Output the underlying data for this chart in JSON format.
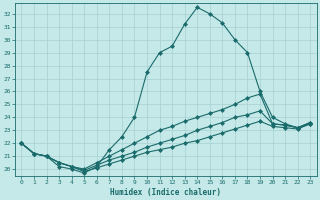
{
  "xlabel": "Humidex (Indice chaleur)",
  "xlim": [
    -0.5,
    23.5
  ],
  "ylim": [
    19.5,
    32.8
  ],
  "yticks": [
    20,
    21,
    22,
    23,
    24,
    25,
    26,
    27,
    28,
    29,
    30,
    31,
    32
  ],
  "xticks": [
    0,
    1,
    2,
    3,
    4,
    5,
    6,
    7,
    8,
    9,
    10,
    11,
    12,
    13,
    14,
    15,
    16,
    17,
    18,
    19,
    20,
    21,
    22,
    23
  ],
  "bg_color": "#c5e8e8",
  "grid_color": "#a8d0d0",
  "line_color": "#1a6b6b",
  "line1_x": [
    0,
    1,
    2,
    3,
    4,
    5,
    6,
    7,
    8,
    9,
    10,
    11,
    12,
    13,
    14,
    15,
    16,
    17,
    18,
    19,
    20,
    21,
    22,
    23
  ],
  "line1_y": [
    22.0,
    21.2,
    21.0,
    20.2,
    20.0,
    19.7,
    20.2,
    21.5,
    22.5,
    24.0,
    27.5,
    29.0,
    29.5,
    31.2,
    32.5,
    32.0,
    31.3,
    30.0,
    29.0,
    26.0,
    24.0,
    23.5,
    23.2,
    23.5
  ],
  "line2_x": [
    0,
    1,
    2,
    3,
    4,
    5,
    6,
    7,
    8,
    9,
    10,
    11,
    12,
    13,
    14,
    15,
    16,
    17,
    18,
    19,
    20,
    21,
    22,
    23
  ],
  "line2_y": [
    22.0,
    21.2,
    21.0,
    20.5,
    20.2,
    20.0,
    20.5,
    21.0,
    21.5,
    22.0,
    22.5,
    23.0,
    23.3,
    23.7,
    24.0,
    24.3,
    24.6,
    25.0,
    25.5,
    25.8,
    23.5,
    23.4,
    23.2,
    23.6
  ],
  "line3_x": [
    0,
    1,
    2,
    3,
    4,
    5,
    6,
    7,
    8,
    9,
    10,
    11,
    12,
    13,
    14,
    15,
    16,
    17,
    18,
    19,
    20,
    21,
    22,
    23
  ],
  "line3_y": [
    22.0,
    21.2,
    21.0,
    20.5,
    20.2,
    19.9,
    20.3,
    20.7,
    21.0,
    21.3,
    21.7,
    22.0,
    22.3,
    22.6,
    23.0,
    23.3,
    23.6,
    24.0,
    24.2,
    24.5,
    23.5,
    23.4,
    23.2,
    23.6
  ],
  "line4_x": [
    0,
    1,
    2,
    3,
    4,
    5,
    6,
    7,
    8,
    9,
    10,
    11,
    12,
    13,
    14,
    15,
    16,
    17,
    18,
    19,
    20,
    21,
    22,
    23
  ],
  "line4_y": [
    22.0,
    21.2,
    21.0,
    20.5,
    20.2,
    19.8,
    20.1,
    20.4,
    20.7,
    21.0,
    21.3,
    21.5,
    21.7,
    22.0,
    22.2,
    22.5,
    22.8,
    23.1,
    23.4,
    23.7,
    23.3,
    23.2,
    23.1,
    23.5
  ]
}
